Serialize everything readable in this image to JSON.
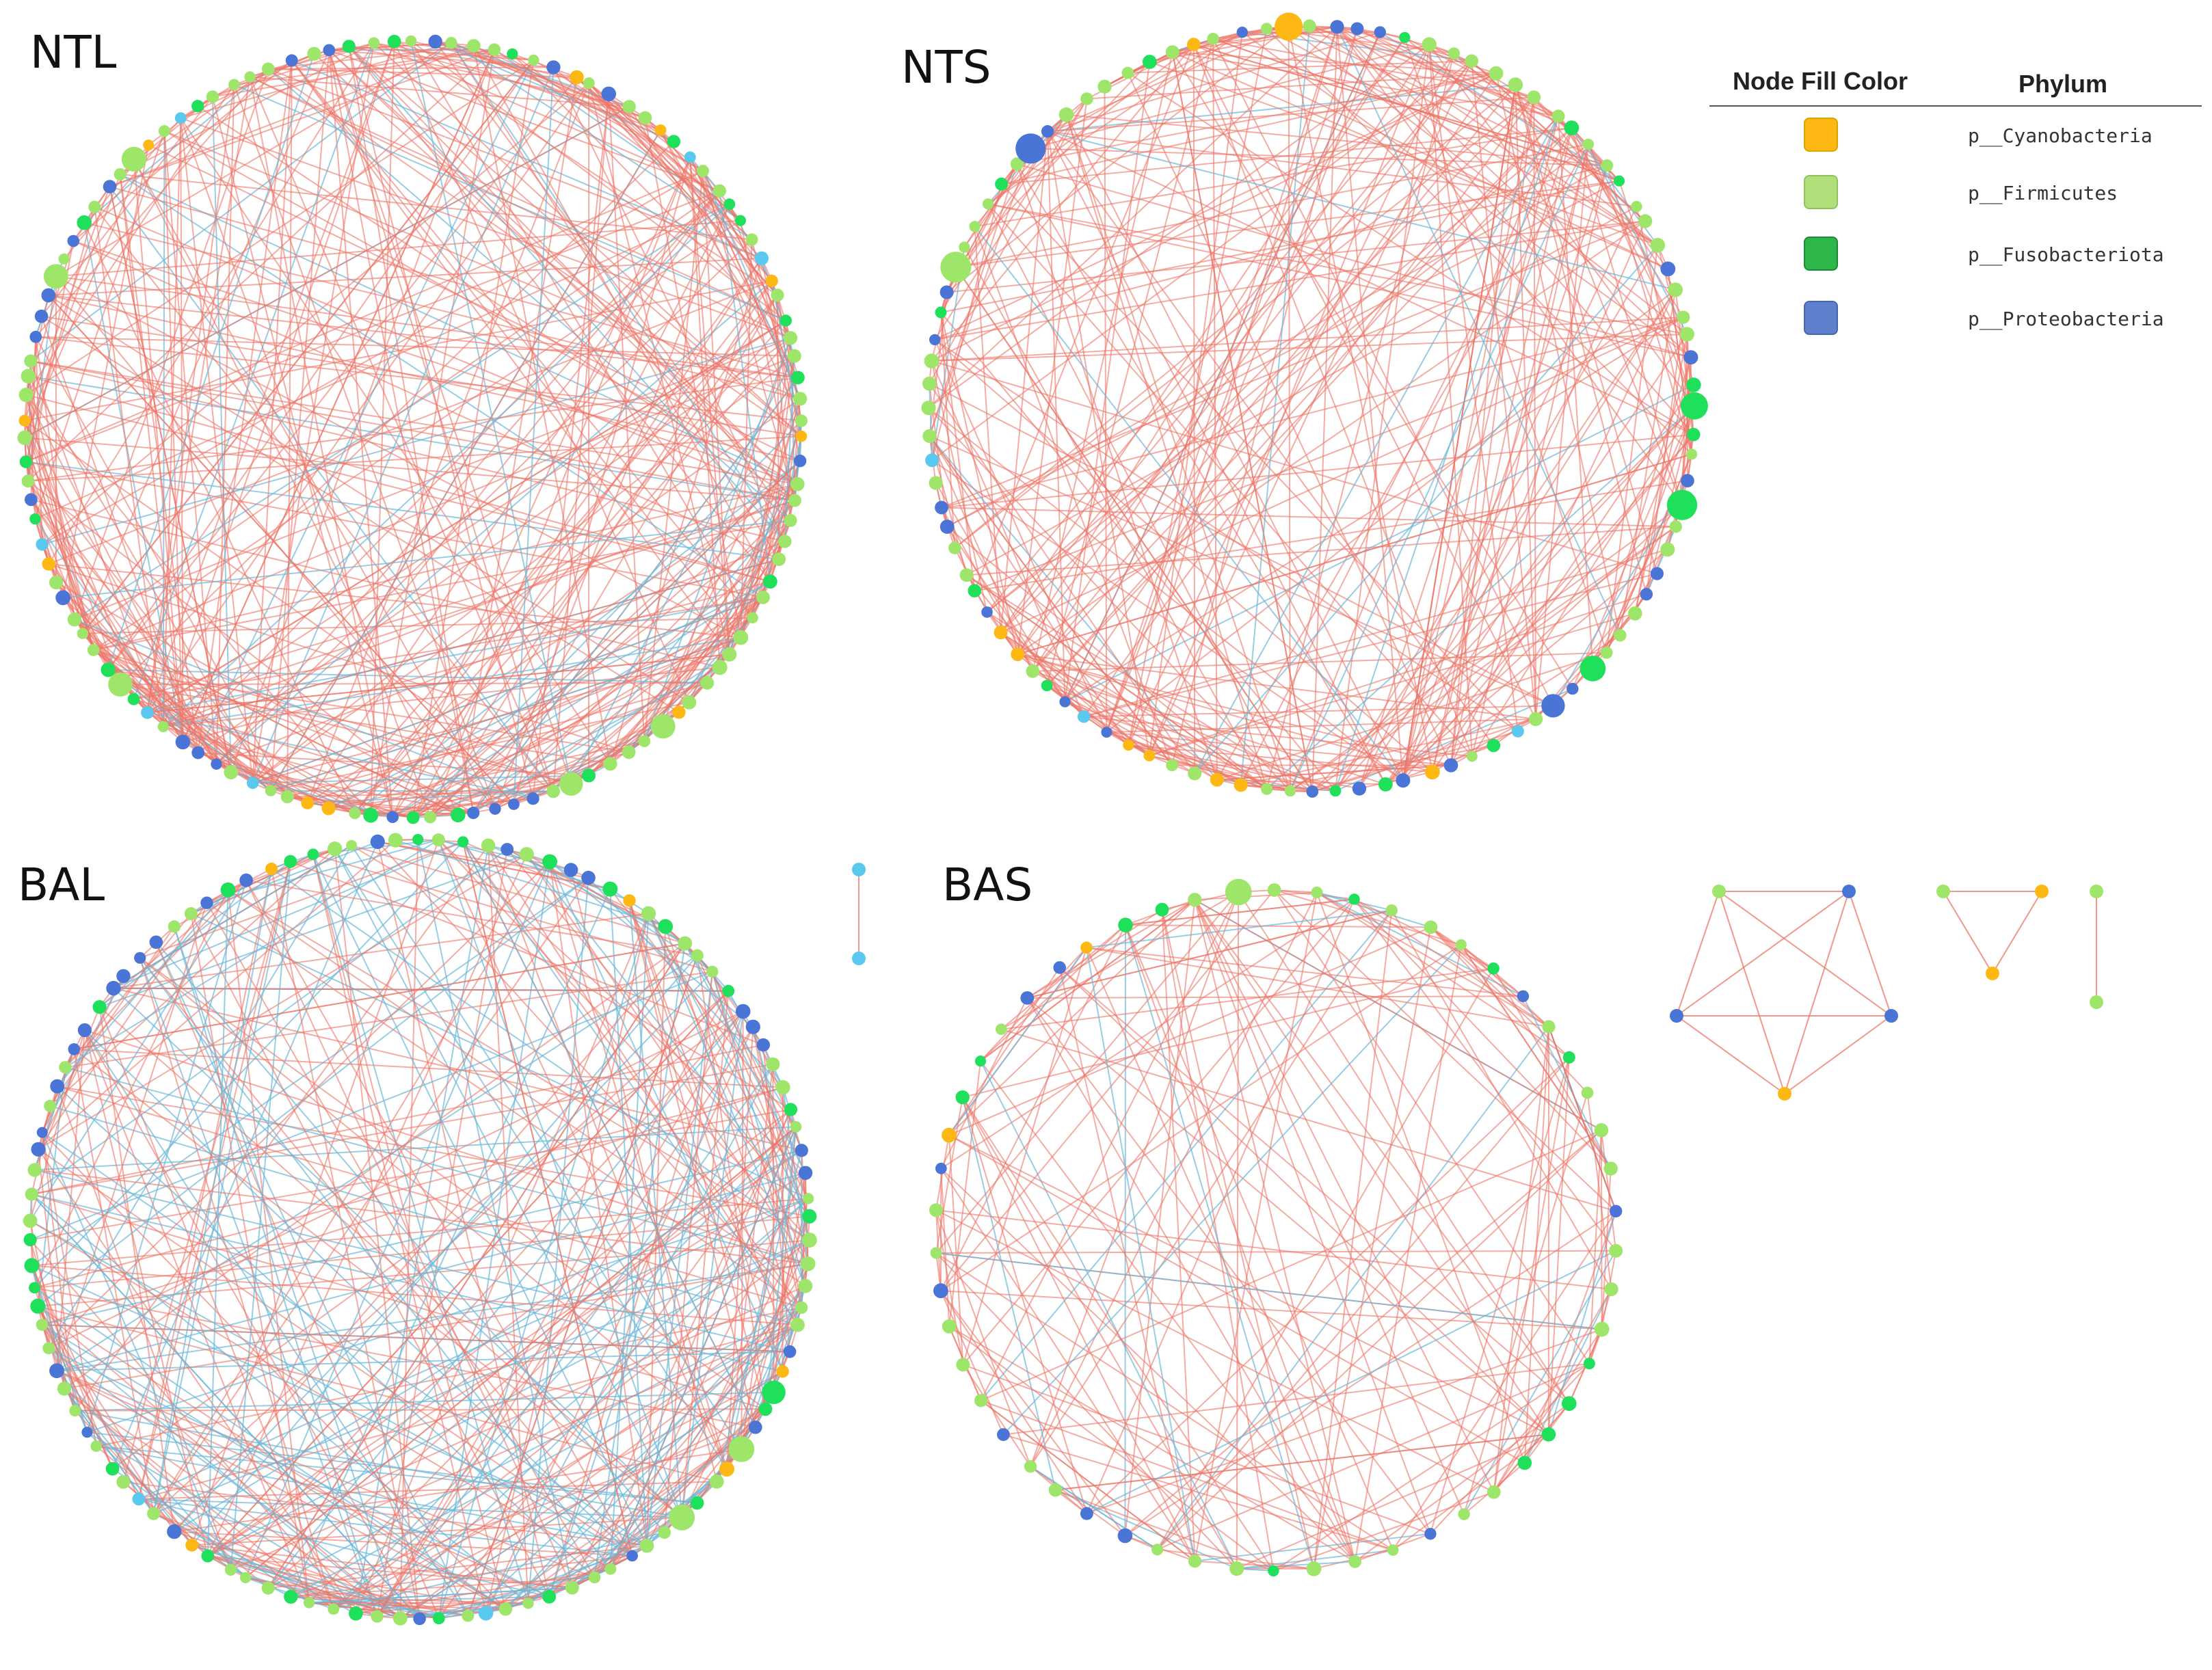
{
  "colors": {
    "positive_edge": "#ec7567",
    "negative_edge": "#6cb8d8",
    "Cyanobacteria": "#fdb813",
    "Firmicutes": "#9ee66a",
    "Fusobacteriota": "#1fe05a",
    "Proteobacteria": "#4a74d6",
    "Unclassified": "#5bc8f0"
  },
  "panels": [
    {
      "id": "NTL",
      "label": "NTL"
    },
    {
      "id": "NTS",
      "label": "NTS"
    },
    {
      "id": "BAL",
      "label": "BAL"
    },
    {
      "id": "BAS",
      "label": "BAS"
    }
  ],
  "legend": {
    "header_color": "Node Fill Color",
    "header_phylum": "Phylum",
    "items": [
      {
        "label": "p__Cyanobacteria",
        "color": "#fdb813"
      },
      {
        "label": "p__Firmicutes",
        "color": "#b3df7a"
      },
      {
        "label": "p__Fusobacteriota",
        "color": "#2db64a"
      },
      {
        "label": "p__Proteobacteria",
        "color": "#5f80cc"
      }
    ]
  }
}
